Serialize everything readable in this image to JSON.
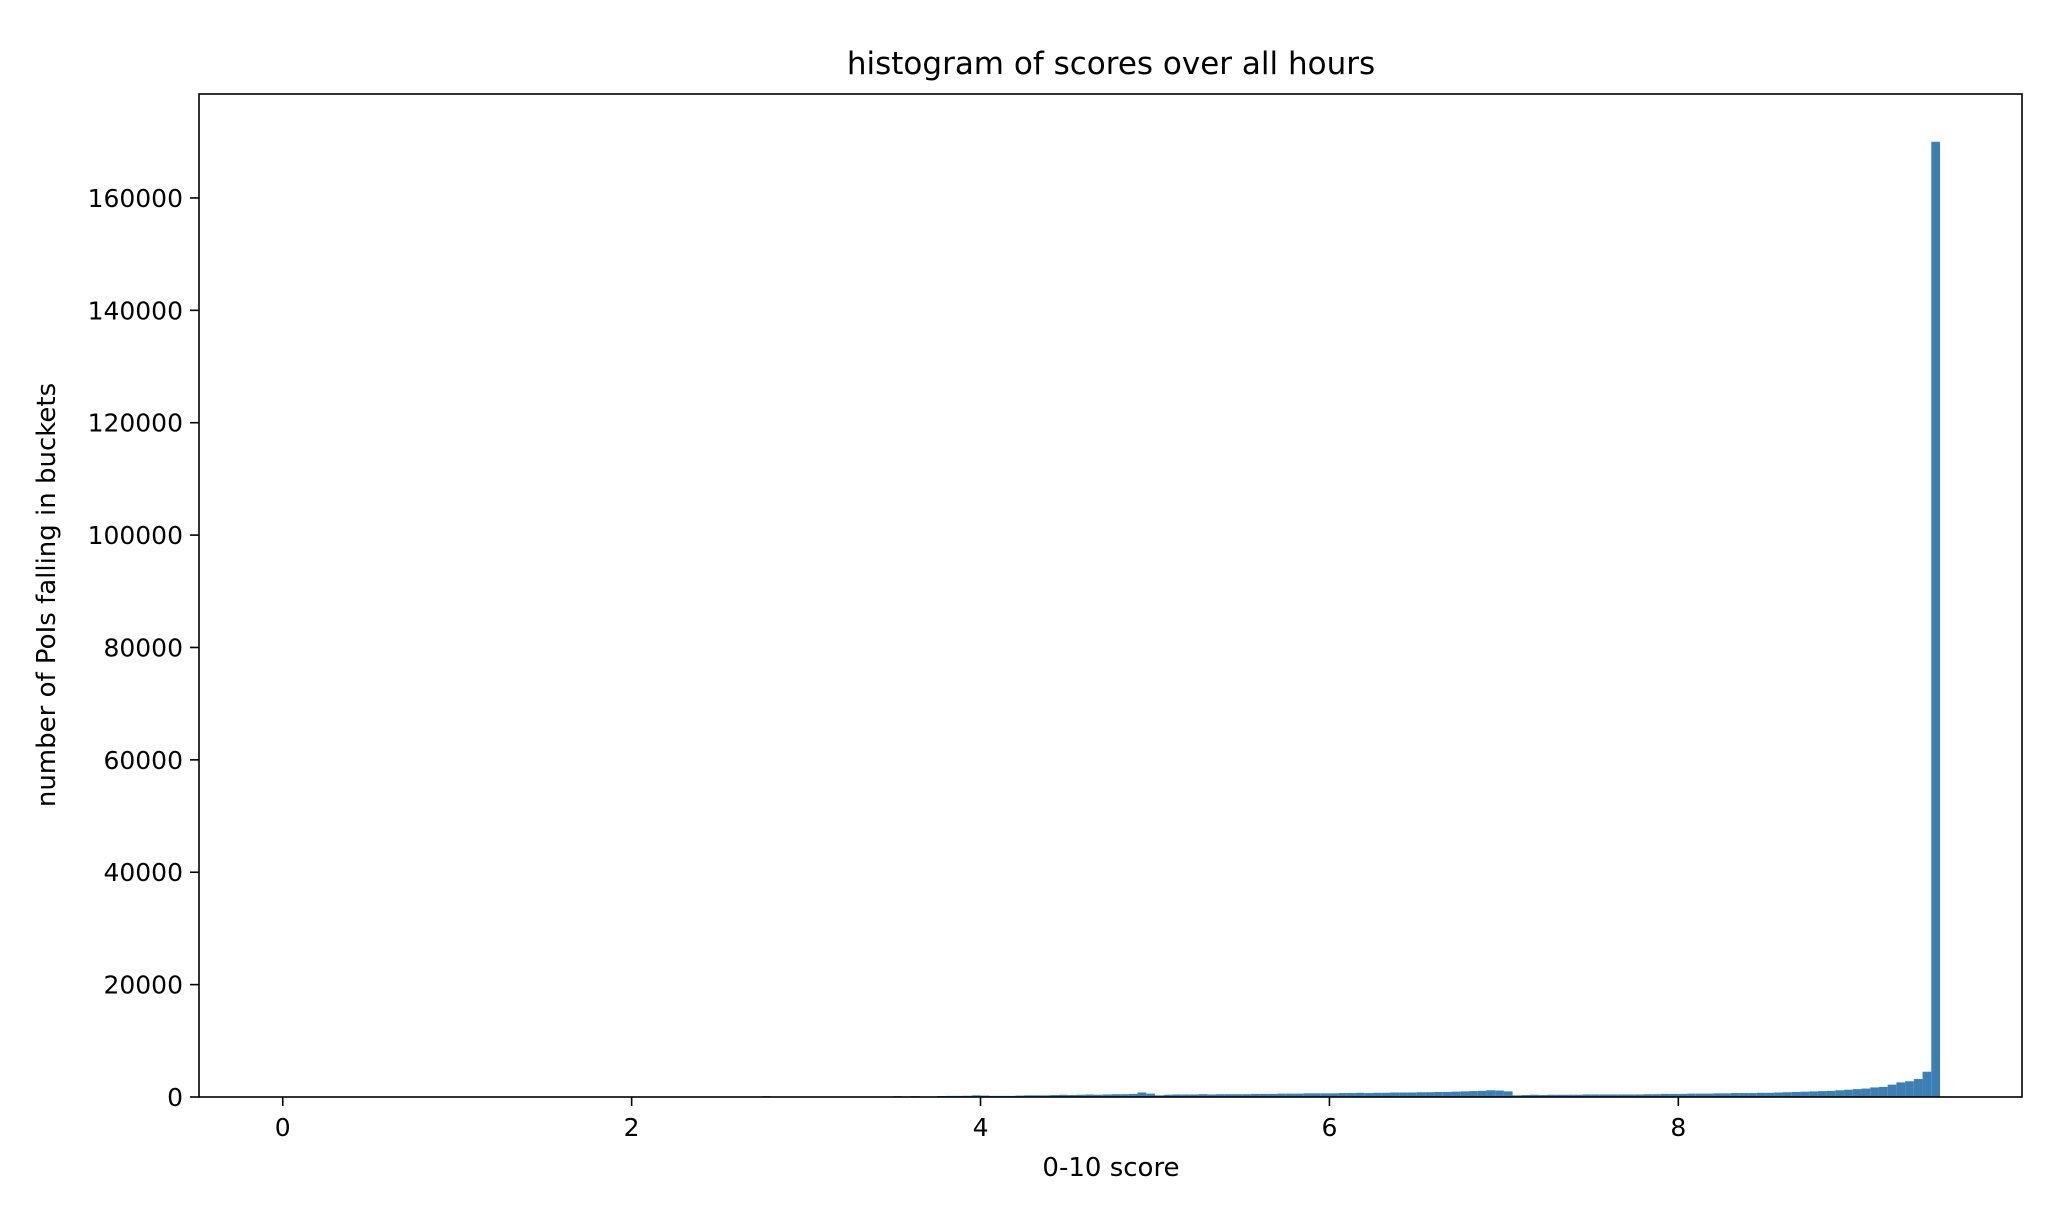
{
  "chart_data": {
    "type": "bar",
    "title": "histogram of scores over all hours",
    "xlabel": "0-10 score",
    "ylabel": "number of PoIs falling in buckets",
    "xlim": [
      -0.48,
      9.97
    ],
    "ylim": [
      0,
      178500
    ],
    "x_ticks": [
      0,
      2,
      4,
      6,
      8
    ],
    "y_ticks": [
      0,
      20000,
      40000,
      60000,
      80000,
      100000,
      120000,
      140000,
      160000
    ],
    "bin_width": 0.05,
    "color": "#3b7fb5",
    "grid": false,
    "legend": "none",
    "bins": [
      {
        "x": 2.75,
        "y": 150
      },
      {
        "x": 3.5,
        "y": 150
      },
      {
        "x": 3.6,
        "y": 150
      },
      {
        "x": 3.75,
        "y": 180
      },
      {
        "x": 3.8,
        "y": 200
      },
      {
        "x": 3.85,
        "y": 200
      },
      {
        "x": 3.9,
        "y": 220
      },
      {
        "x": 3.95,
        "y": 300
      },
      {
        "x": 4.0,
        "y": 250
      },
      {
        "x": 4.05,
        "y": 200
      },
      {
        "x": 4.1,
        "y": 200
      },
      {
        "x": 4.15,
        "y": 200
      },
      {
        "x": 4.2,
        "y": 250
      },
      {
        "x": 4.25,
        "y": 300
      },
      {
        "x": 4.3,
        "y": 300
      },
      {
        "x": 4.35,
        "y": 300
      },
      {
        "x": 4.4,
        "y": 350
      },
      {
        "x": 4.45,
        "y": 400
      },
      {
        "x": 4.5,
        "y": 350
      },
      {
        "x": 4.55,
        "y": 400
      },
      {
        "x": 4.6,
        "y": 450
      },
      {
        "x": 4.65,
        "y": 400
      },
      {
        "x": 4.7,
        "y": 450
      },
      {
        "x": 4.75,
        "y": 500
      },
      {
        "x": 4.8,
        "y": 500
      },
      {
        "x": 4.85,
        "y": 550
      },
      {
        "x": 4.9,
        "y": 800
      },
      {
        "x": 4.95,
        "y": 600
      },
      {
        "x": 5.0,
        "y": 300
      },
      {
        "x": 5.05,
        "y": 400
      },
      {
        "x": 5.1,
        "y": 450
      },
      {
        "x": 5.15,
        "y": 450
      },
      {
        "x": 5.2,
        "y": 450
      },
      {
        "x": 5.25,
        "y": 500
      },
      {
        "x": 5.3,
        "y": 450
      },
      {
        "x": 5.35,
        "y": 500
      },
      {
        "x": 5.4,
        "y": 500
      },
      {
        "x": 5.45,
        "y": 500
      },
      {
        "x": 5.5,
        "y": 500
      },
      {
        "x": 5.55,
        "y": 550
      },
      {
        "x": 5.6,
        "y": 550
      },
      {
        "x": 5.65,
        "y": 550
      },
      {
        "x": 5.7,
        "y": 600
      },
      {
        "x": 5.75,
        "y": 600
      },
      {
        "x": 5.8,
        "y": 600
      },
      {
        "x": 5.85,
        "y": 650
      },
      {
        "x": 5.9,
        "y": 650
      },
      {
        "x": 5.95,
        "y": 650
      },
      {
        "x": 6.0,
        "y": 650
      },
      {
        "x": 6.05,
        "y": 700
      },
      {
        "x": 6.1,
        "y": 700
      },
      {
        "x": 6.15,
        "y": 750
      },
      {
        "x": 6.2,
        "y": 700
      },
      {
        "x": 6.25,
        "y": 750
      },
      {
        "x": 6.3,
        "y": 750
      },
      {
        "x": 6.35,
        "y": 800
      },
      {
        "x": 6.4,
        "y": 800
      },
      {
        "x": 6.45,
        "y": 800
      },
      {
        "x": 6.5,
        "y": 850
      },
      {
        "x": 6.55,
        "y": 850
      },
      {
        "x": 6.6,
        "y": 900
      },
      {
        "x": 6.65,
        "y": 900
      },
      {
        "x": 6.7,
        "y": 950
      },
      {
        "x": 6.75,
        "y": 1000
      },
      {
        "x": 6.8,
        "y": 1050
      },
      {
        "x": 6.85,
        "y": 1100
      },
      {
        "x": 6.9,
        "y": 1200
      },
      {
        "x": 6.95,
        "y": 1150
      },
      {
        "x": 7.0,
        "y": 1000
      },
      {
        "x": 7.05,
        "y": 300
      },
      {
        "x": 7.1,
        "y": 350
      },
      {
        "x": 7.15,
        "y": 400
      },
      {
        "x": 7.2,
        "y": 350
      },
      {
        "x": 7.25,
        "y": 400
      },
      {
        "x": 7.3,
        "y": 400
      },
      {
        "x": 7.35,
        "y": 400
      },
      {
        "x": 7.4,
        "y": 400
      },
      {
        "x": 7.45,
        "y": 450
      },
      {
        "x": 7.5,
        "y": 450
      },
      {
        "x": 7.55,
        "y": 450
      },
      {
        "x": 7.6,
        "y": 450
      },
      {
        "x": 7.65,
        "y": 450
      },
      {
        "x": 7.7,
        "y": 450
      },
      {
        "x": 7.75,
        "y": 450
      },
      {
        "x": 7.8,
        "y": 500
      },
      {
        "x": 7.85,
        "y": 500
      },
      {
        "x": 7.9,
        "y": 550
      },
      {
        "x": 7.95,
        "y": 550
      },
      {
        "x": 8.0,
        "y": 550
      },
      {
        "x": 8.05,
        "y": 600
      },
      {
        "x": 8.1,
        "y": 600
      },
      {
        "x": 8.15,
        "y": 600
      },
      {
        "x": 8.2,
        "y": 650
      },
      {
        "x": 8.25,
        "y": 650
      },
      {
        "x": 8.3,
        "y": 700
      },
      {
        "x": 8.35,
        "y": 700
      },
      {
        "x": 8.4,
        "y": 700
      },
      {
        "x": 8.45,
        "y": 750
      },
      {
        "x": 8.5,
        "y": 750
      },
      {
        "x": 8.55,
        "y": 800
      },
      {
        "x": 8.6,
        "y": 850
      },
      {
        "x": 8.65,
        "y": 900
      },
      {
        "x": 8.7,
        "y": 950
      },
      {
        "x": 8.75,
        "y": 1000
      },
      {
        "x": 8.8,
        "y": 1050
      },
      {
        "x": 8.85,
        "y": 1100
      },
      {
        "x": 8.9,
        "y": 1200
      },
      {
        "x": 8.95,
        "y": 1300
      },
      {
        "x": 9.0,
        "y": 1400
      },
      {
        "x": 9.05,
        "y": 1500
      },
      {
        "x": 9.1,
        "y": 1700
      },
      {
        "x": 9.15,
        "y": 1800
      },
      {
        "x": 9.2,
        "y": 2200
      },
      {
        "x": 9.25,
        "y": 2600
      },
      {
        "x": 9.3,
        "y": 2800
      },
      {
        "x": 9.35,
        "y": 3200
      },
      {
        "x": 9.4,
        "y": 4500
      },
      {
        "x": 9.45,
        "y": 170000
      }
    ]
  }
}
